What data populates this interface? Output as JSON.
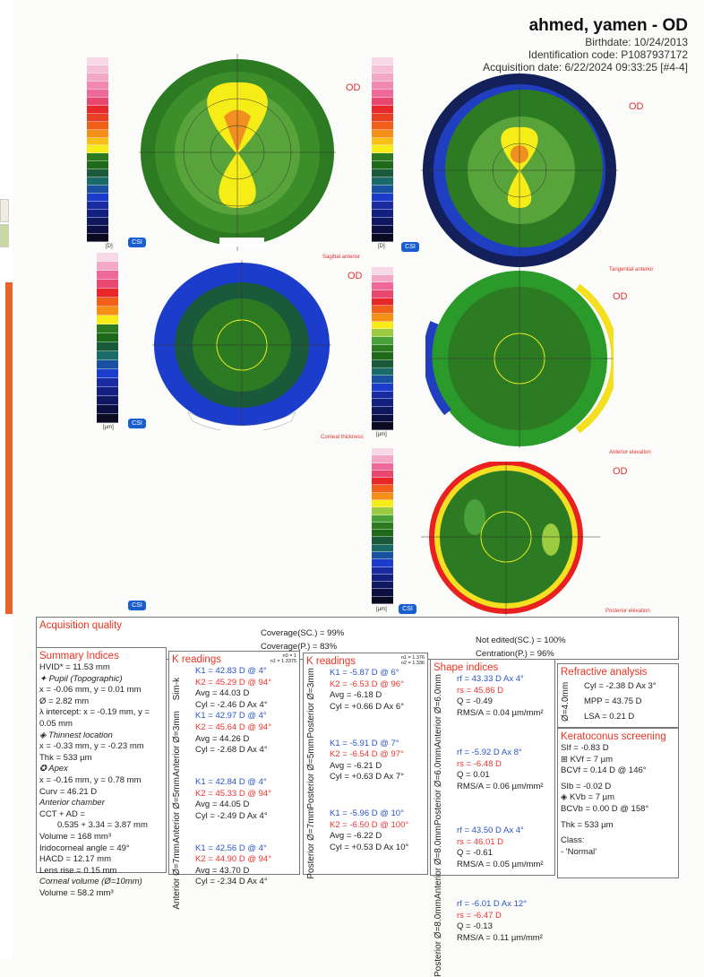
{
  "header": {
    "name": "ahmed, yamen - OD",
    "birthdate": "Birthdate: 10/24/2013",
    "id_code": "Identification code: P1087937172",
    "acquisition": "Acquisition date: 6/22/2024 09:33:25 [#4-4]"
  },
  "maps": [
    {
      "title": "Sagittal anterior",
      "eye": "OD",
      "unit": "[D]",
      "csi": "CSI"
    },
    {
      "title": "Tangential anterior",
      "eye": "OD",
      "unit": "[D]",
      "csi": "CSI"
    },
    {
      "title": "Corneal thickness",
      "eye": "OD",
      "unit": "[µm]",
      "csi": "CSI"
    },
    {
      "title": "Anterior elevation",
      "eye": "OD",
      "unit": "[µm]",
      "csi": "CSI"
    },
    {
      "title": "Posterior elevation",
      "eye": "OD",
      "unit": "[µm]",
      "csi": "CSI"
    }
  ],
  "acq": {
    "title": "Acquisition quality",
    "cov_sc": "Coverage(SC.) = 99%",
    "cov_p": "Coverage(P.) = 83%",
    "not_edited": "Not edited(SC.) = 100%",
    "centration": "Centration(P.) = 96%"
  },
  "summary": {
    "title": "Summary Indices",
    "lines": [
      "HVID* = 11.53 mm",
      "✦ Pupil (Topographic)",
      "x = -0.06 mm, y = 0.01 mm",
      "Ø = 2.82 mm",
      "λ intercept: x = -0.19 mm, y = 0.05 mm",
      "◈ Thinnest location",
      "x = -0.33 mm, y = -0.23 mm",
      "Thk = 533 µm",
      "✪ Apex",
      "x = -0.16 mm, y = 0.78 mm",
      "Curv = 46.21 D",
      "Anterior chamber",
      "CCT + AD =",
      "0.535 + 3.34 = 3.87 mm",
      "Volume = 168 mm³",
      "Iridocorneal angle = 49°",
      "HACD = 12.17 mm",
      "Lens rise = 0.15 mm",
      "Corneal volume (Ø=10mm)",
      "Volume = 58.2 mm³"
    ]
  },
  "k_anterior": {
    "title": "K readings",
    "n": "n0 = 1\nn1 = 1.3375",
    "groups": [
      {
        "label": "Sim-k",
        "k1": "K1 = 42.83 D  @ 4°",
        "k2": "K2 = 45.29 D  @ 94°",
        "avg": "Avg = 44.03 D",
        "cyl": "Cyl = -2.46 D Ax 4°"
      },
      {
        "label": "Anterior Ø=3mm",
        "k1": "K1 = 42.97 D  @ 4°",
        "k2": "K2 = 45.64 D  @ 94°",
        "avg": "Avg = 44.26 D",
        "cyl": "Cyl = -2.68 D Ax 4°"
      },
      {
        "label": "Anterior Ø=5mm",
        "k1": "K1 = 42.84 D  @ 4°",
        "k2": "K2 = 45.33 D  @ 94°",
        "avg": "Avg = 44.05 D",
        "cyl": "Cyl = -2.49 D Ax 4°"
      },
      {
        "label": "Anterior Ø=7mm",
        "k1": "K1 = 42.56 D  @ 4°",
        "k2": "K2 = 44.90 D  @ 94°",
        "avg": "Avg = 43.70 D",
        "cyl": "Cyl = -2.34 D Ax 4°"
      }
    ]
  },
  "k_posterior": {
    "title": "K readings",
    "n": "n1 = 1.376\nn2 = 1.336",
    "groups": [
      {
        "label": "Posterior Ø=3mm",
        "k1": "K1 = -5.87 D  @ 6°",
        "k2": "K2 = -6.53 D  @ 96°",
        "avg": "Avg = -6.18 D",
        "cyl": "Cyl = +0.66 D Ax 6°"
      },
      {
        "label": "Posterior Ø=5mm",
        "k1": "K1 = -5.91 D  @ 7°",
        "k2": "K2 = -6.54 D  @ 97°",
        "avg": "Avg = -6.21 D",
        "cyl": "Cyl = +0.63 D Ax 7°"
      },
      {
        "label": "Posterior Ø=7mm",
        "k1": "K1 = -5.96 D  @ 10°",
        "k2": "K2 = -6.50 D  @ 100°",
        "avg": "Avg = -6.22 D",
        "cyl": "Cyl = +0.53 D Ax 10°"
      }
    ]
  },
  "shape": {
    "title": "Shape indices",
    "groups": [
      {
        "label": "Anterior Ø=6.0mm",
        "rf": "rf = 43.33 D Ax 4°",
        "rs": "rs = 45.86 D",
        "q": "Q = -0.49",
        "rms": "RMS/A = 0.04 µm/mm²"
      },
      {
        "label": "Posterior Ø=6.0mm",
        "rf": "rf = -5.92 D Ax 8°",
        "rs": "rs = -6.48 D",
        "q": "Q = 0.01",
        "rms": "RMS/A = 0.06 µm/mm²"
      },
      {
        "label": "Anterior Ø=8.0mm",
        "rf": "rf = 43.50 D Ax 4°",
        "rs": "rs = 46.01 D",
        "q": "Q = -0.61",
        "rms": "RMS/A = 0.05 µm/mm²"
      },
      {
        "label": "Posterior Ø=8.0mm",
        "rf": "rf = -6.01 D Ax 12°",
        "rs": "rs = -6.47 D",
        "q": "Q = -0.13",
        "rms": "RMS/A = 0.11 µm/mm²"
      }
    ]
  },
  "refractive": {
    "title": "Refractive analysis",
    "label": "Ø=4.0mm",
    "cyl": "Cyl = -2.38 D Ax 3°",
    "mpp": "MPP = 43.75 D",
    "lsa": "LSA = 0.21 D"
  },
  "kc": {
    "title": "Keratoconus screening",
    "lines": [
      "SIf = -0.83 D",
      "⊞ KVf = 7 µm",
      "BCVf = 0.14 D @ 146°",
      "SIb = -0.02 D",
      "◈ KVb = 7 µm",
      "BCVb = 0.00 D @ 158°",
      "Thk = 533 µm",
      "Class:",
      "- 'Normal'"
    ]
  }
}
